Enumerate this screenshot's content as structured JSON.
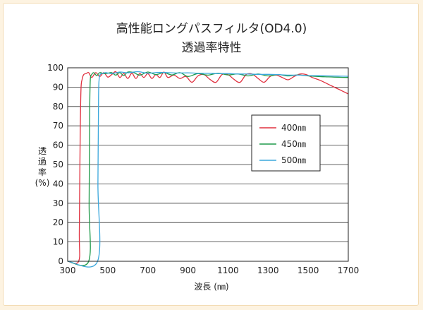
{
  "chart_data": {
    "type": "line",
    "title": "高性能ロングパスフィルタ(OD4.0)",
    "subtitle": "透過率特性",
    "xlabel": "波長 (㎚)",
    "ylabel": "透過率(%)",
    "xlim": [
      300,
      1700
    ],
    "ylim": [
      0,
      100
    ],
    "xticks": [
      "300",
      "500",
      "700",
      "900",
      "1100",
      "1300",
      "1500",
      "1700"
    ],
    "xtick_values": [
      300,
      500,
      700,
      900,
      1100,
      1300,
      1500,
      1700
    ],
    "yticks": [
      "0",
      "10",
      "20",
      "30",
      "40",
      "50",
      "60",
      "70",
      "80",
      "90",
      "100"
    ],
    "ytick_values": [
      0,
      10,
      20,
      30,
      40,
      50,
      60,
      70,
      80,
      90,
      100
    ],
    "grid": "horizontal",
    "legend_position": "right",
    "series": [
      {
        "name": "400㎚",
        "color": "#e0303f",
        "x": [
          300,
          355,
          358,
          362,
          366,
          372,
          380,
          392,
          405,
          420,
          440,
          460,
          480,
          500,
          520,
          540,
          560,
          580,
          600,
          620,
          640,
          660,
          680,
          700,
          720,
          740,
          760,
          780,
          800,
          830,
          860,
          890,
          920,
          950,
          980,
          1010,
          1040,
          1070,
          1100,
          1130,
          1160,
          1190,
          1220,
          1250,
          1280,
          1310,
          1340,
          1370,
          1400,
          1430,
          1460,
          1490,
          1520,
          1560,
          1600,
          1650,
          1700
        ],
        "y": [
          0,
          0,
          15,
          60,
          88,
          94,
          96.5,
          97,
          97.5,
          95,
          97.5,
          95.5,
          97.5,
          95.2,
          96.5,
          98,
          95,
          97,
          94.5,
          97.2,
          94.5,
          97,
          95,
          97,
          94.5,
          96.5,
          95,
          97.8,
          95,
          96.2,
          94.5,
          95.5,
          92.5,
          95.8,
          96.5,
          94,
          92.5,
          96.5,
          96.5,
          94,
          92.5,
          96.5,
          96.8,
          94.5,
          92.5,
          95.5,
          96.2,
          95,
          93.8,
          95.5,
          96.8,
          96.5,
          95,
          93.5,
          91.5,
          89,
          86.5
        ]
      },
      {
        "name": "450㎚",
        "color": "#1f9a4a",
        "x": [
          300,
          405,
          407,
          410,
          413,
          420,
          430,
          445,
          460,
          480,
          500,
          520,
          540,
          560,
          580,
          600,
          630,
          660,
          700,
          740,
          780,
          820,
          860,
          900,
          950,
          1000,
          1050,
          1100,
          1150,
          1200,
          1250,
          1300,
          1350,
          1400,
          1450,
          1500,
          1550,
          1600,
          1650,
          1700
        ],
        "y": [
          0,
          0,
          30,
          80,
          94,
          96.5,
          97.5,
          96,
          97.5,
          97,
          97.2,
          97.5,
          96.2,
          97.5,
          96,
          97.8,
          97.5,
          96.2,
          97.8,
          96.5,
          97.5,
          96.3,
          97.5,
          95.5,
          97,
          96.2,
          97.2,
          96.3,
          96.8,
          95.8,
          96.8,
          95.8,
          96.5,
          95.8,
          96.3,
          95.8,
          95.5,
          95.3,
          95.1,
          95
        ]
      },
      {
        "name": "500㎚",
        "color": "#3aa7dc",
        "x": [
          300,
          449,
          451,
          454,
          457,
          462,
          470,
          490,
          520,
          560,
          600,
          650,
          700,
          750,
          800,
          850,
          900,
          950,
          1000,
          1050,
          1100,
          1150,
          1200,
          1250,
          1300,
          1350,
          1400,
          1450,
          1500,
          1550,
          1600,
          1650,
          1700
        ],
        "y": [
          0,
          0,
          40,
          85,
          94,
          96.5,
          97,
          97.5,
          97,
          97.8,
          97.4,
          98,
          97.2,
          97.6,
          97.5,
          97.3,
          97.4,
          97.2,
          97.2,
          97,
          97,
          96.8,
          96.8,
          96.6,
          96.6,
          96.5,
          96.2,
          96.2,
          96,
          95.9,
          95.8,
          95.7,
          95.6
        ]
      }
    ]
  }
}
